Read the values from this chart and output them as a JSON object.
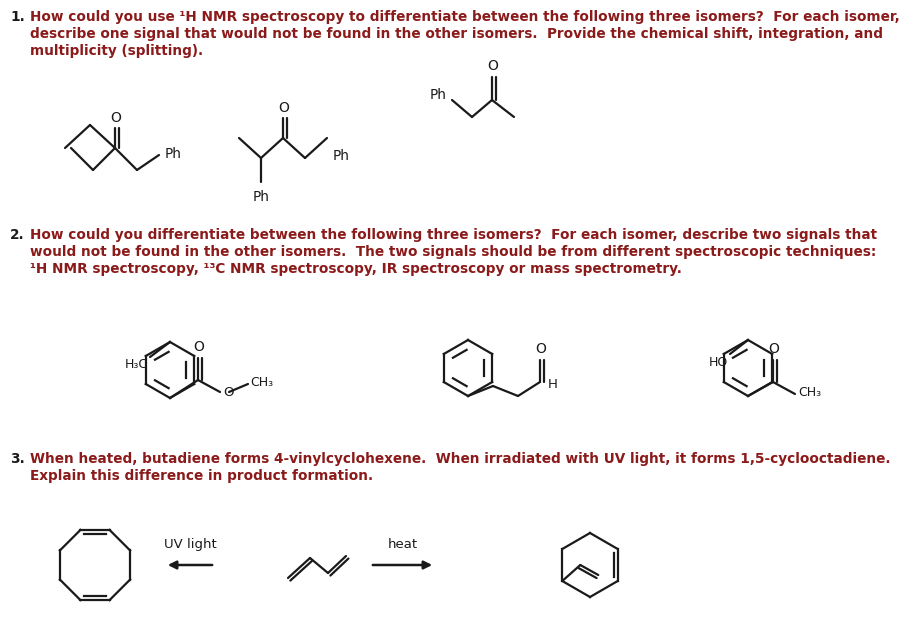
{
  "background_color": "#ffffff",
  "text_color": "#1a1a1a",
  "bold_color": "#8B1A1A",
  "fig_width": 9.24,
  "fig_height": 6.32,
  "q1_num": "1.",
  "q1_line1": "How could you use ¹H NMR spectroscopy to differentiate between the following three isomers?  For each isomer,",
  "q1_line2": "describe one signal that would not be found in the other isomers.  Provide the chemical shift, integration, and",
  "q1_line3": "multiplicity (splitting).",
  "q2_num": "2.",
  "q2_line1": "How could you differentiate between the following three isomers?  For each isomer, describe two signals that",
  "q2_line2": "would not be found in the other isomers.  The two signals should be from different spectroscopic techniques:",
  "q2_line3": "¹H NMR spectroscopy, ¹³C NMR spectroscopy, IR spectroscopy or mass spectrometry.",
  "q3_num": "3.",
  "q3_line1": "When heated, butadiene forms 4-vinylcyclohexene.  When irradiated with UV light, it forms 1,5-cyclooctadiene.",
  "q3_line2": "Explain this difference in product formation.",
  "uv_light": "UV light",
  "heat": "heat"
}
